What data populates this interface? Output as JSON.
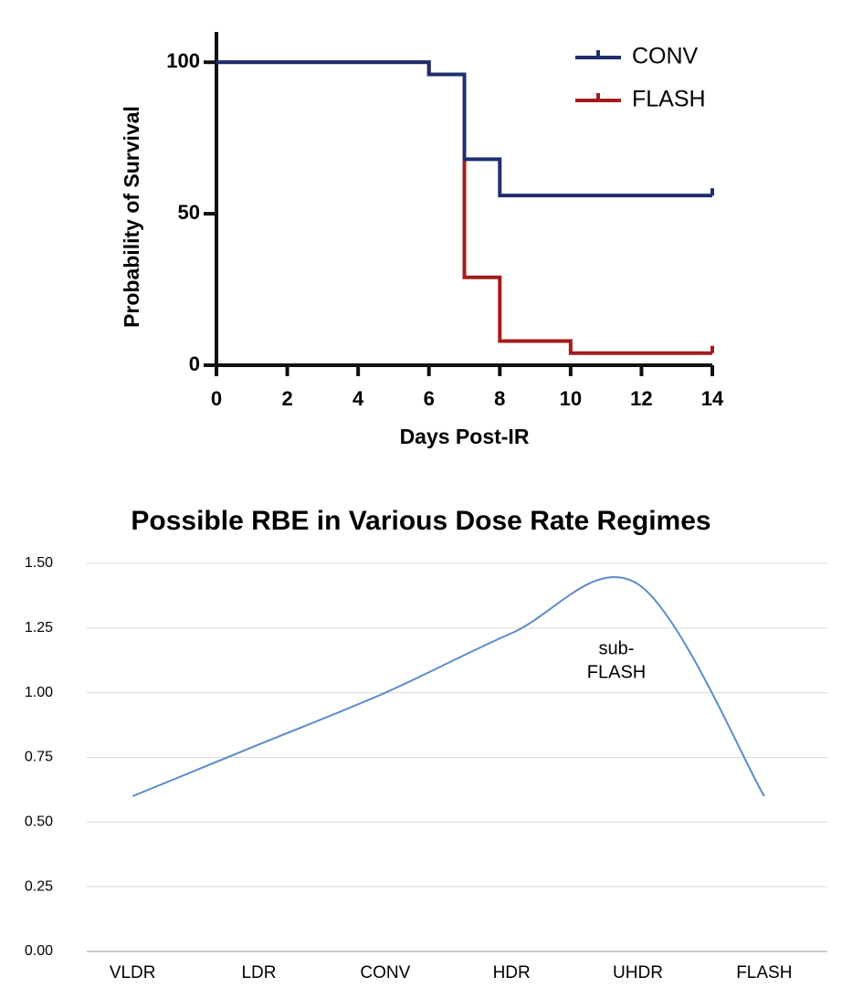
{
  "chart_data": [
    {
      "type": "step",
      "xlabel": "Days Post-IR",
      "ylabel": "Probability of Survival",
      "x": [
        0,
        6,
        7,
        8,
        10,
        14
      ],
      "series": [
        {
          "name": "CONV",
          "color": "#1f2f6e",
          "values": [
            100,
            96,
            68,
            56,
            56,
            56
          ]
        },
        {
          "name": "FLASH",
          "color": "#a31c1c",
          "values": [
            100,
            96,
            29,
            8,
            4,
            4
          ]
        }
      ],
      "xlim": [
        0,
        14
      ],
      "xticks": [
        0,
        2,
        4,
        6,
        8,
        10,
        12,
        14
      ],
      "ylim": [
        0,
        110
      ],
      "yticks": [
        0,
        50,
        100
      ],
      "legend": "top-right"
    },
    {
      "type": "smooth-line",
      "title": "Possible RBE in Various Dose Rate Regimes",
      "categories": [
        "VLDR",
        "LDR",
        "CONV",
        "HDR",
        "UHDR",
        "FLASH"
      ],
      "values": [
        0.6,
        0.8,
        1.0,
        1.23,
        1.42,
        0.6
      ],
      "color": "#5b8bc9",
      "ylim": [
        0,
        1.5
      ],
      "yticks": [
        {
          "value": 0,
          "label": "0.00"
        },
        {
          "value": 0.25,
          "label": "0.25"
        },
        {
          "value": 0.5,
          "label": "0.50"
        },
        {
          "value": 0.75,
          "label": "0.75"
        },
        {
          "value": 1,
          "label": "1.00"
        },
        {
          "value": 1.25,
          "label": "1.25"
        },
        {
          "value": 1.5,
          "label": "1.50"
        }
      ],
      "grid": true,
      "annotation": [
        "sub-",
        "FLASH"
      ]
    }
  ]
}
